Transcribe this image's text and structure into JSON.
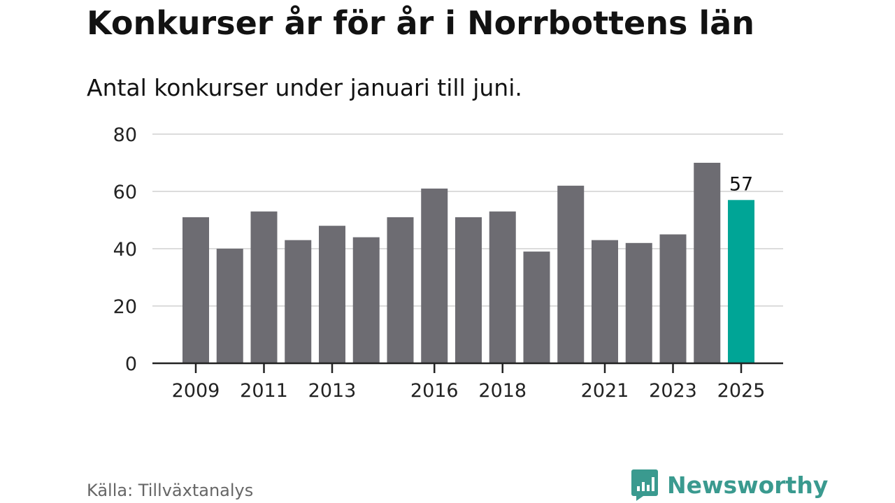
{
  "header": {
    "title": "Konkurser år för år i Norrbottens län",
    "subtitle": "Antal konkurser under januari till juni."
  },
  "footer": {
    "source": "Källa: Tillväxtanalys",
    "brand": "Newsworthy"
  },
  "colors": {
    "bar": "#6d6c72",
    "highlight": "#00a596",
    "grid": "#dcdcdc",
    "axis": "#222222",
    "brand": "#3a9a8f"
  },
  "chart_data": {
    "type": "bar",
    "categories": [
      "2009",
      "2010",
      "2011",
      "2012",
      "2013",
      "2014",
      "2015",
      "2016",
      "2017",
      "2018",
      "2019",
      "2020",
      "2021",
      "2022",
      "2023",
      "2024",
      "2025"
    ],
    "values": [
      51,
      40,
      53,
      43,
      48,
      44,
      51,
      61,
      51,
      53,
      39,
      62,
      43,
      42,
      45,
      70,
      57
    ],
    "x_tick_labels": [
      "2009",
      "2011",
      "2013",
      "2016",
      "2018",
      "2021",
      "2023",
      "2025"
    ],
    "y_ticks": [
      0,
      20,
      40,
      60,
      80
    ],
    "ylim": [
      0,
      80
    ],
    "highlight_category": "2025",
    "data_labels": [
      {
        "category": "2025",
        "text": "57"
      }
    ],
    "grid": true
  }
}
